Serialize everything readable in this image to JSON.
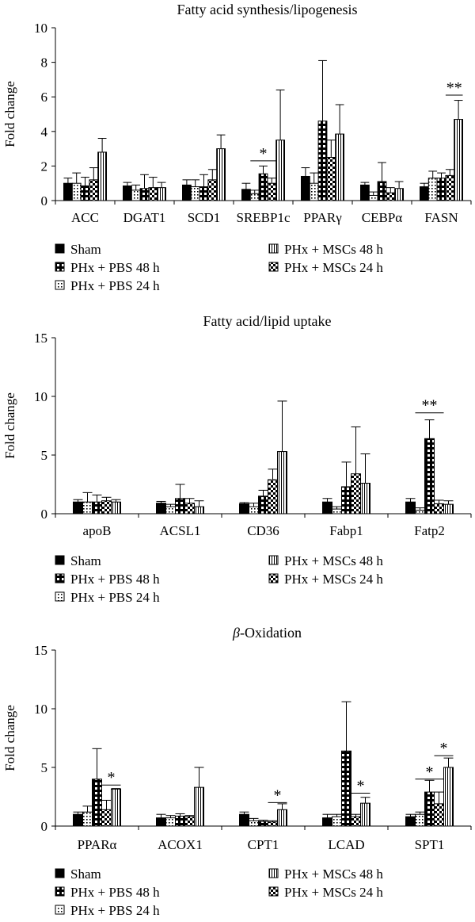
{
  "legend_labels": {
    "sham": "Sham",
    "pbs48": "PHx + PBS 48 h",
    "pbs24": "PHx + PBS 24 h",
    "msc48": "PHx + MSCs 48 h",
    "msc24": "PHx + MSCs 24 h"
  },
  "chart_data": [
    {
      "type": "bar",
      "title": "Fatty acid synthesis/lipogenesis",
      "title_parts": [
        {
          "text": "Fatty acid synthesis/lipogenesis",
          "italic": false
        }
      ],
      "ylabel": "Fold change",
      "ylim": [
        0,
        10
      ],
      "yticks": [
        0,
        2,
        4,
        6,
        8,
        10
      ],
      "grid": false,
      "legend": "bottom",
      "categories": [
        "ACC",
        "DGAT1",
        "SCD1",
        "SREBP1c",
        "PPARγ",
        "CEBPα",
        "FASN"
      ],
      "series": [
        {
          "name": "Sham",
          "pattern": "solid",
          "values": [
            1.0,
            0.85,
            0.9,
            0.65,
            1.4,
            0.9,
            0.8
          ],
          "errors": [
            0.3,
            0.2,
            0.3,
            0.35,
            0.5,
            0.15,
            0.2
          ]
        },
        {
          "name": "PHx + PBS 24 h",
          "pattern": "dots",
          "values": [
            1.0,
            0.6,
            0.8,
            0.4,
            1.0,
            0.3,
            1.3
          ],
          "errors": [
            0.6,
            0.3,
            0.4,
            0.2,
            0.6,
            0.2,
            0.4
          ]
        },
        {
          "name": "PHx + PBS 48 h",
          "pattern": "halfdark",
          "values": [
            0.85,
            0.7,
            0.8,
            1.55,
            4.6,
            1.1,
            1.3
          ],
          "errors": [
            0.5,
            0.8,
            0.7,
            0.45,
            3.5,
            1.1,
            0.3
          ]
        },
        {
          "name": "PHx + MSCs 24 h",
          "pattern": "checker",
          "values": [
            1.2,
            0.75,
            1.2,
            1.0,
            2.5,
            0.45,
            1.45
          ],
          "errors": [
            0.7,
            0.6,
            0.6,
            0.3,
            1.0,
            0.3,
            0.35
          ]
        },
        {
          "name": "PHx + MSCs 48 h",
          "pattern": "vlines",
          "values": [
            2.8,
            0.75,
            3.0,
            3.5,
            3.85,
            0.7,
            4.7
          ],
          "errors": [
            0.8,
            0.3,
            0.8,
            2.9,
            1.7,
            0.4,
            1.1
          ]
        }
      ],
      "annotations": [
        {
          "category": "SREBP1c",
          "from_series": 1,
          "to_series": 3,
          "text": "*",
          "y": 2.3
        },
        {
          "category": "FASN",
          "from_series": 3,
          "to_series": 4,
          "text": "**",
          "y": 6.1
        }
      ]
    },
    {
      "type": "bar",
      "title": "Fatty acid/lipid uptake",
      "title_parts": [
        {
          "text": "Fatty acid/lipid uptake",
          "italic": false
        }
      ],
      "ylabel": "Fold change",
      "ylim": [
        0,
        15
      ],
      "yticks": [
        0,
        5,
        10,
        15
      ],
      "grid": false,
      "legend": "bottom",
      "categories": [
        "apoB",
        "ACSL1",
        "CD36",
        "Fabp1",
        "Fatp2"
      ],
      "series": [
        {
          "name": "Sham",
          "pattern": "solid",
          "values": [
            1.0,
            0.9,
            0.85,
            1.0,
            1.0
          ],
          "errors": [
            0.2,
            0.15,
            0.1,
            0.3,
            0.3
          ]
        },
        {
          "name": "PHx + PBS 24 h",
          "pattern": "dots",
          "values": [
            1.0,
            0.6,
            0.6,
            0.4,
            0.3
          ],
          "errors": [
            0.8,
            0.2,
            0.3,
            0.2,
            0.2
          ]
        },
        {
          "name": "PHx + PBS 48 h",
          "pattern": "halfdark",
          "values": [
            1.0,
            1.3,
            1.5,
            2.3,
            6.4
          ],
          "errors": [
            0.6,
            1.2,
            0.5,
            2.1,
            1.6
          ]
        },
        {
          "name": "PHx + MSCs 24 h",
          "pattern": "checker",
          "values": [
            1.1,
            0.9,
            2.9,
            3.4,
            0.85
          ],
          "errors": [
            0.3,
            0.4,
            0.9,
            4.0,
            0.3
          ]
        },
        {
          "name": "PHx + MSCs 48 h",
          "pattern": "vlines",
          "values": [
            1.0,
            0.6,
            5.3,
            2.6,
            0.8
          ],
          "errors": [
            0.2,
            0.5,
            4.3,
            2.5,
            0.3
          ]
        }
      ],
      "annotations": [
        {
          "category": "Fatp2",
          "from_series": 1,
          "to_series": 3,
          "text": "**",
          "y": 8.6
        }
      ]
    },
    {
      "type": "bar",
      "title": "β-Oxidation",
      "title_parts": [
        {
          "text": "β",
          "italic": true
        },
        {
          "text": "-Oxidation",
          "italic": false
        }
      ],
      "ylabel": "Fold change",
      "ylim": [
        0,
        15
      ],
      "yticks": [
        0,
        5,
        10,
        15
      ],
      "grid": false,
      "legend": "bottom",
      "categories": [
        "PPARα",
        "ACOX1",
        "CPT1",
        "LCAD",
        "SPT1"
      ],
      "series": [
        {
          "name": "Sham",
          "pattern": "solid",
          "values": [
            1.0,
            0.7,
            1.0,
            0.7,
            0.8
          ],
          "errors": [
            0.2,
            0.3,
            0.2,
            0.3,
            0.2
          ]
        },
        {
          "name": "PHx + PBS 24 h",
          "pattern": "dots",
          "values": [
            1.2,
            0.7,
            0.45,
            0.8,
            1.0
          ],
          "errors": [
            0.5,
            0.2,
            0.2,
            0.2,
            0.2
          ]
        },
        {
          "name": "PHx + PBS 48 h",
          "pattern": "halfdark",
          "values": [
            4.0,
            0.85,
            0.4,
            6.4,
            2.9
          ],
          "errors": [
            2.6,
            0.2,
            0.1,
            4.2,
            1.0
          ]
        },
        {
          "name": "PHx + MSCs 24 h",
          "pattern": "checker",
          "values": [
            1.4,
            0.8,
            0.35,
            0.8,
            1.9
          ],
          "errors": [
            0.8,
            0.1,
            0.1,
            0.2,
            1.0
          ]
        },
        {
          "name": "PHx + MSCs 48 h",
          "pattern": "vlines",
          "values": [
            3.15,
            3.3,
            1.4,
            1.95,
            5.0
          ],
          "errors": [
            0.05,
            1.7,
            0.5,
            0.5,
            0.8
          ]
        }
      ],
      "annotations": [
        {
          "category": "PPARα",
          "from_series": 3,
          "to_series": 4,
          "text": "*",
          "y": 3.5
        },
        {
          "category": "CPT1",
          "from_series": 3,
          "to_series": 4,
          "text": "*",
          "y": 2.0
        },
        {
          "category": "LCAD",
          "from_series": 3,
          "to_series": 4,
          "text": "*",
          "y": 2.8
        },
        {
          "category": "SPT1",
          "from_series": 1,
          "to_series": 3,
          "text": "*",
          "y": 4.0
        },
        {
          "category": "SPT1",
          "from_series": 3,
          "to_series": 4,
          "text": "*",
          "y": 6.0
        }
      ]
    }
  ]
}
